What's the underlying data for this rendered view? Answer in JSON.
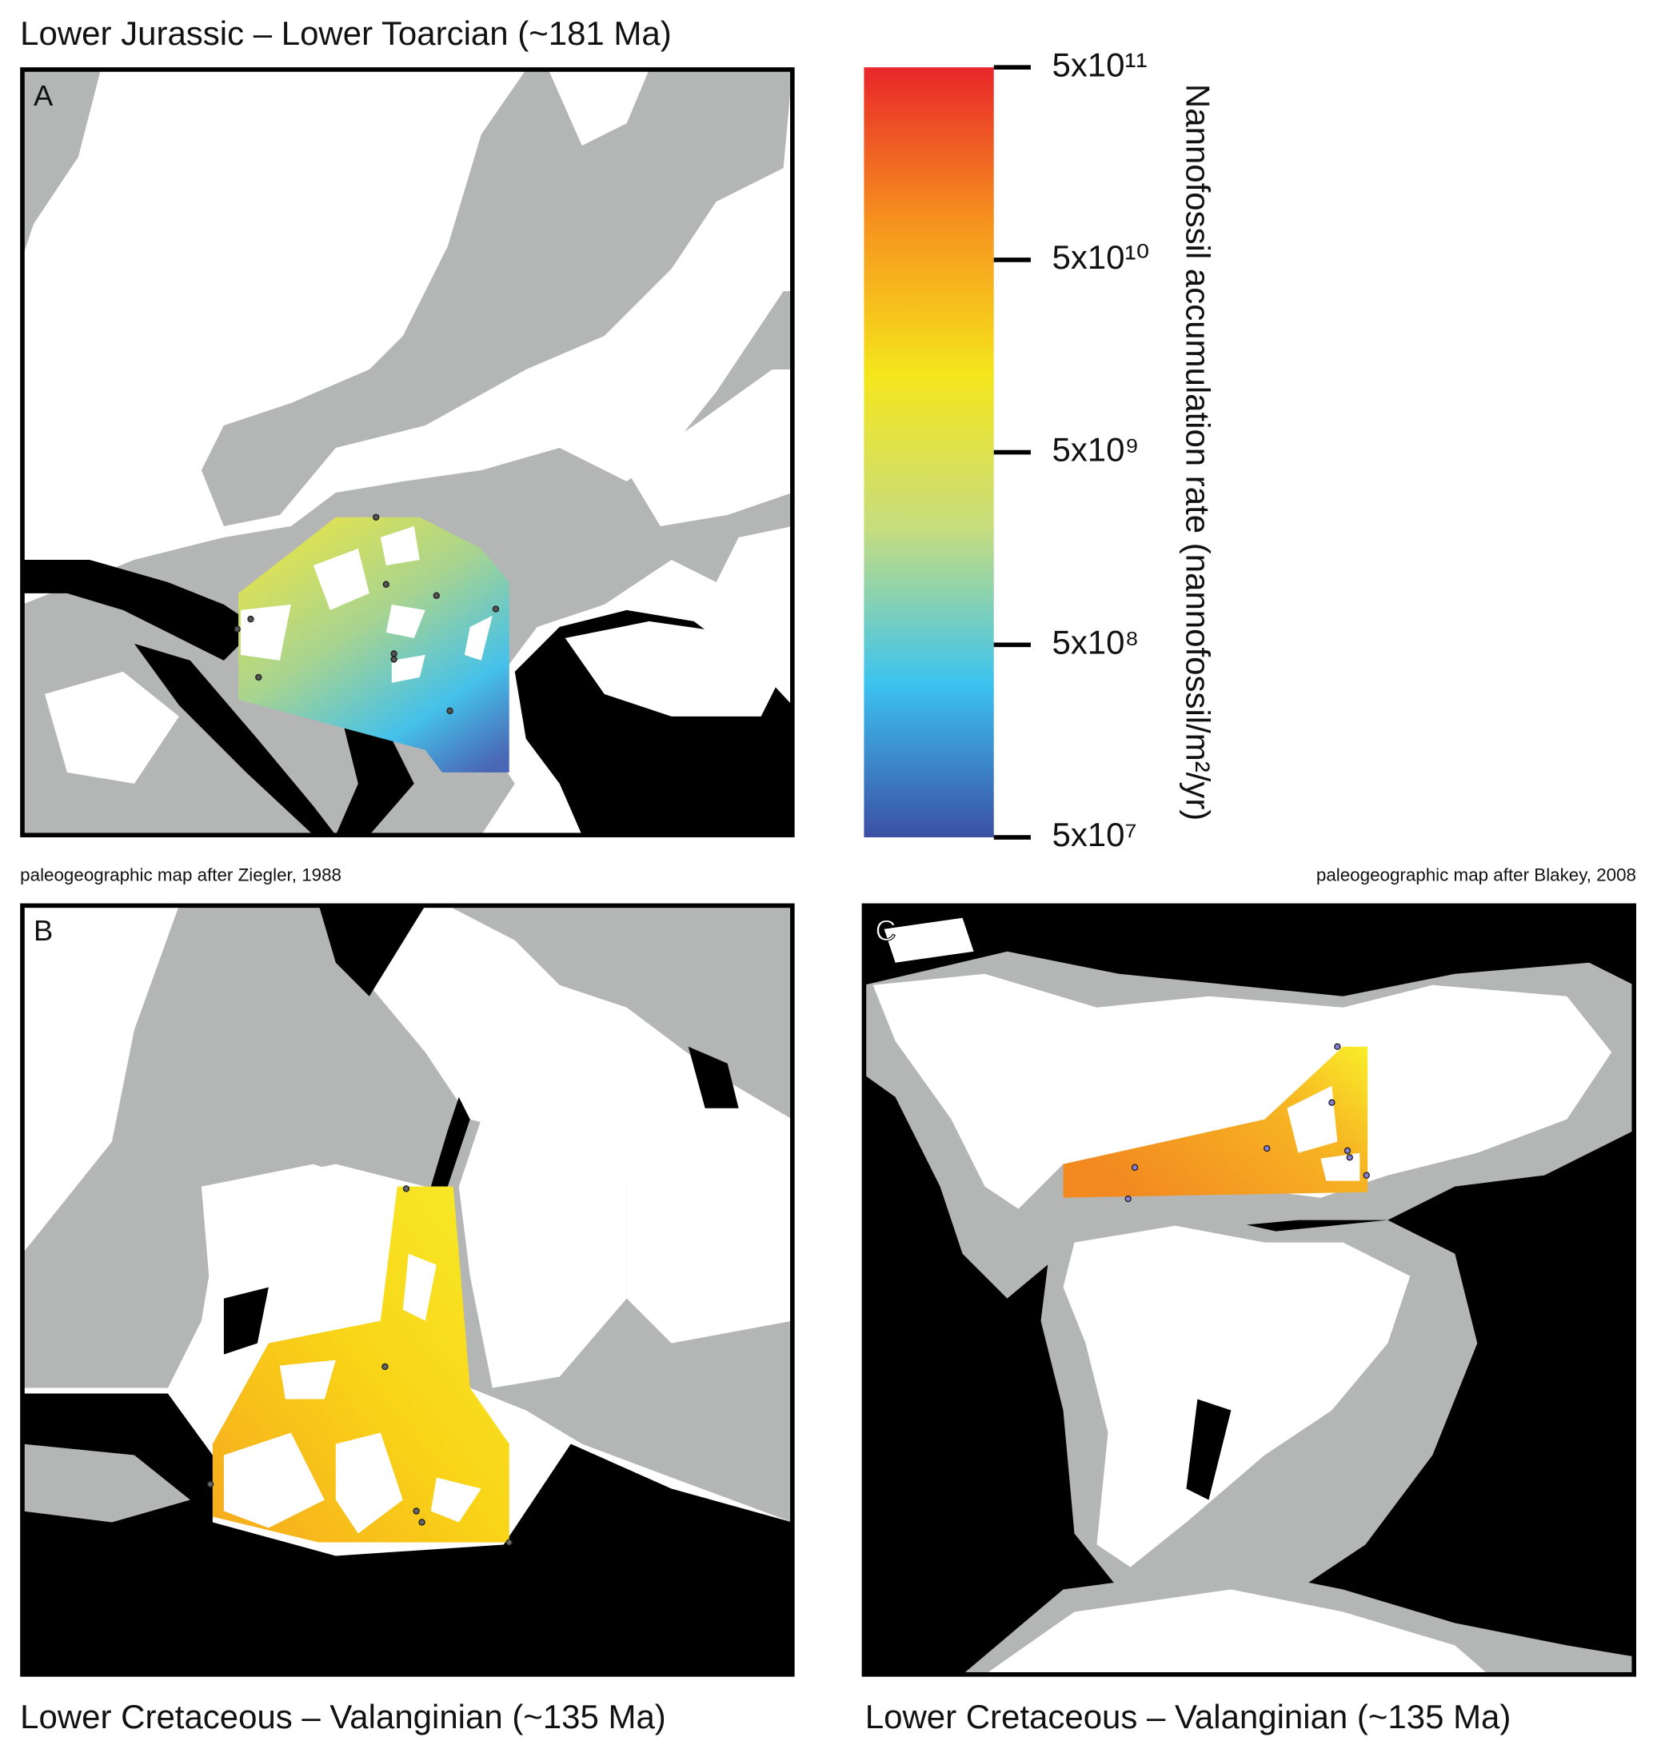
{
  "panels": [
    {
      "label": "A",
      "title": "Lower Jurassic – Lower Toarcian (~181 Ma)",
      "caption": "paleogeographic map after Ziegler, 1988"
    },
    {
      "label": "B",
      "title": "Lower Cretaceous – Valanginian (~135 Ma)"
    },
    {
      "label": "C",
      "title": "Lower Cretaceous – Valanginian (~135 Ma)",
      "caption": "paleogeographic map after Blakey, 2008"
    }
  ],
  "colorbar": {
    "label": "Nannofossil accumulation rate (nannofossil/m²/yr)",
    "scale": "log",
    "lim": [
      50000000,
      500000000000
    ],
    "ticks": [
      {
        "value": 50000000,
        "label": "5x10⁷"
      },
      {
        "value": 500000000,
        "label": "5x10⁸"
      },
      {
        "value": 5000000000,
        "label": "5x10⁹"
      },
      {
        "value": 50000000000,
        "label": "5x10¹⁰"
      },
      {
        "value": 500000000000,
        "label": "5x10¹¹"
      }
    ],
    "colors": [
      "#3b4fa3",
      "#3cc3ef",
      "#c6dd80",
      "#f5e61c",
      "#f6921e",
      "#e8262a"
    ]
  }
}
